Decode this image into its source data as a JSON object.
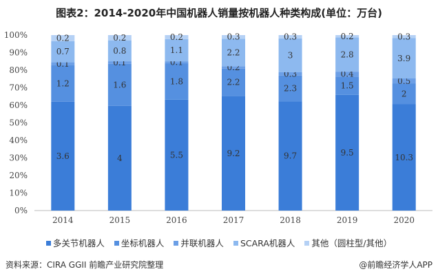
{
  "chart_data": {
    "type": "bar",
    "stacked": "percent",
    "title": "图表2：2014-2020年中国机器人销量按机器人种类构成(单位：万台)",
    "categories": [
      "2014",
      "2015",
      "2016",
      "2017",
      "2018",
      "2019",
      "2020"
    ],
    "series": [
      {
        "name": "多关节机器人",
        "color": "#3b7dd8",
        "values": [
          3.6,
          4,
          5.5,
          9.2,
          9.7,
          9.5,
          10.3
        ]
      },
      {
        "name": "坐标机器人",
        "color": "#5590e0",
        "values": [
          1.2,
          1.6,
          1.8,
          2.2,
          2.3,
          1.5,
          2
        ]
      },
      {
        "name": "并联机器人",
        "color": "#6c9fe6",
        "values": [
          0.1,
          0.1,
          0.1,
          0.2,
          0.3,
          0.4,
          0.5
        ]
      },
      {
        "name": "SCARA机器人",
        "color": "#8db9ef",
        "values": [
          0.7,
          0.8,
          1.1,
          2.2,
          3,
          2.8,
          3.9
        ]
      },
      {
        "name": "其他（圆柱型/其他）",
        "color": "#b5d1f5",
        "values": [
          0.2,
          0.2,
          0.2,
          0.3,
          0.3,
          0.2,
          0.3
        ]
      }
    ],
    "yticks": [
      "0%",
      "10%",
      "20%",
      "30%",
      "40%",
      "50%",
      "60%",
      "70%",
      "80%",
      "90%",
      "100%"
    ],
    "ylim": [
      0,
      100
    ],
    "grid": false,
    "legend": "bottom"
  },
  "footer": {
    "source": "资料来源：CIRA GGII 前瞻产业研究院整理",
    "brand": "@前瞻经济学人APP"
  }
}
